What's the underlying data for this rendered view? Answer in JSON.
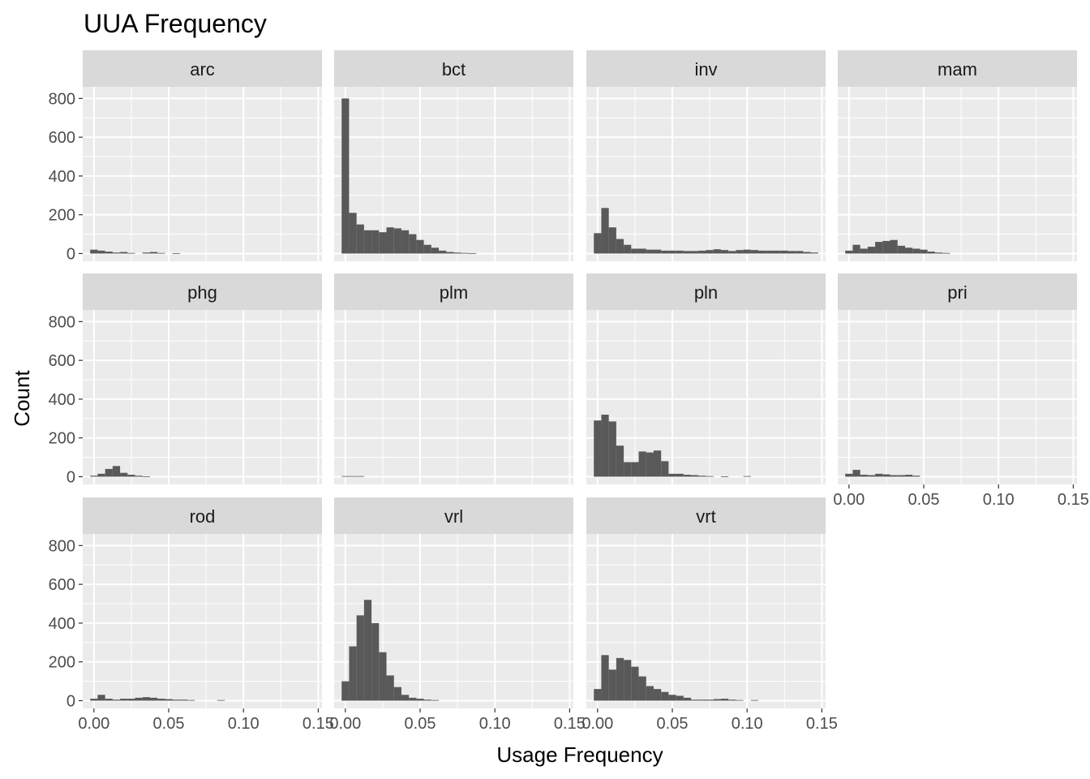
{
  "chart_data": {
    "type": "bar",
    "subtype": "faceted-histogram",
    "title": "UUA Frequency",
    "xlabel": "Usage Frequency",
    "ylabel": "Count",
    "xlim": [
      0,
      0.15
    ],
    "ylim": [
      0,
      800
    ],
    "x_ticks": [
      0.0,
      0.05,
      0.1,
      0.15
    ],
    "x_tick_labels": [
      "0.00",
      "0.05",
      "0.10",
      "0.15"
    ],
    "y_ticks": [
      0,
      200,
      400,
      600,
      800
    ],
    "y_tick_labels": [
      "0",
      "200",
      "400",
      "600",
      "800"
    ],
    "bin_width": 0.005,
    "bin_start": -0.0025,
    "facet_layout": {
      "columns": 4,
      "rows": 3
    },
    "grid": true,
    "bar_color": "#595959",
    "panel_color": "#ebebeb",
    "strip_color": "#d9d9d9",
    "facets": [
      {
        "label": "arc",
        "counts": [
          20,
          15,
          10,
          5,
          8,
          3,
          0,
          5,
          8,
          3,
          0,
          2,
          0,
          0,
          0,
          0,
          0,
          0,
          0,
          0,
          0,
          0,
          0,
          0,
          0,
          0,
          0,
          0,
          0,
          0
        ]
      },
      {
        "label": "bct",
        "counts": [
          800,
          210,
          150,
          120,
          120,
          110,
          135,
          130,
          120,
          100,
          70,
          45,
          30,
          15,
          8,
          5,
          3,
          2,
          0,
          0,
          0,
          0,
          0,
          0,
          0,
          0,
          0,
          0,
          0,
          0
        ]
      },
      {
        "label": "inv",
        "counts": [
          105,
          235,
          135,
          75,
          45,
          25,
          25,
          20,
          20,
          15,
          15,
          15,
          13,
          13,
          15,
          18,
          22,
          18,
          13,
          18,
          20,
          18,
          15,
          15,
          15,
          15,
          13,
          13,
          8,
          5
        ]
      },
      {
        "label": "mam",
        "counts": [
          15,
          45,
          25,
          35,
          60,
          65,
          70,
          40,
          30,
          25,
          20,
          10,
          5,
          3,
          0,
          0,
          0,
          0,
          0,
          0,
          0,
          0,
          0,
          0,
          0,
          0,
          0,
          0,
          0,
          0
        ]
      },
      {
        "label": "phg",
        "counts": [
          5,
          15,
          40,
          55,
          20,
          10,
          5,
          2,
          0,
          0,
          0,
          0,
          0,
          0,
          0,
          0,
          0,
          0,
          0,
          0,
          0,
          0,
          0,
          0,
          0,
          0,
          0,
          0,
          0,
          0
        ]
      },
      {
        "label": "plm",
        "counts": [
          3,
          3,
          3,
          0,
          0,
          0,
          0,
          0,
          0,
          0,
          0,
          0,
          0,
          0,
          0,
          0,
          0,
          0,
          0,
          0,
          0,
          0,
          0,
          0,
          0,
          0,
          0,
          0,
          0,
          0
        ]
      },
      {
        "label": "pln",
        "counts": [
          290,
          320,
          285,
          160,
          75,
          75,
          130,
          125,
          135,
          80,
          15,
          15,
          10,
          8,
          5,
          3,
          0,
          2,
          0,
          0,
          3,
          0,
          0,
          0,
          0,
          0,
          0,
          0,
          0,
          0
        ]
      },
      {
        "label": "pri",
        "counts": [
          15,
          35,
          10,
          8,
          15,
          12,
          8,
          8,
          10,
          5,
          0,
          0,
          0,
          0,
          0,
          0,
          0,
          0,
          0,
          0,
          0,
          0,
          0,
          0,
          0,
          0,
          0,
          0,
          0,
          0
        ]
      },
      {
        "label": "rod",
        "counts": [
          10,
          30,
          10,
          5,
          10,
          10,
          15,
          18,
          15,
          10,
          8,
          5,
          5,
          3,
          0,
          0,
          0,
          3,
          0,
          0,
          0,
          0,
          0,
          0,
          0,
          0,
          0,
          0,
          0,
          0
        ]
      },
      {
        "label": "vrl",
        "counts": [
          100,
          280,
          440,
          520,
          400,
          250,
          130,
          70,
          30,
          15,
          10,
          5,
          3,
          0,
          0,
          0,
          0,
          0,
          0,
          0,
          0,
          0,
          0,
          0,
          0,
          0,
          0,
          0,
          0,
          0
        ]
      },
      {
        "label": "vrt",
        "counts": [
          60,
          235,
          160,
          220,
          210,
          175,
          125,
          75,
          60,
          45,
          30,
          25,
          15,
          5,
          5,
          5,
          8,
          10,
          5,
          3,
          0,
          3,
          0,
          0,
          0,
          0,
          0,
          0,
          0,
          0
        ]
      }
    ],
    "x_axis_shown_on": [
      "arc-col",
      "bct-col",
      "inv-col",
      "pri"
    ]
  }
}
